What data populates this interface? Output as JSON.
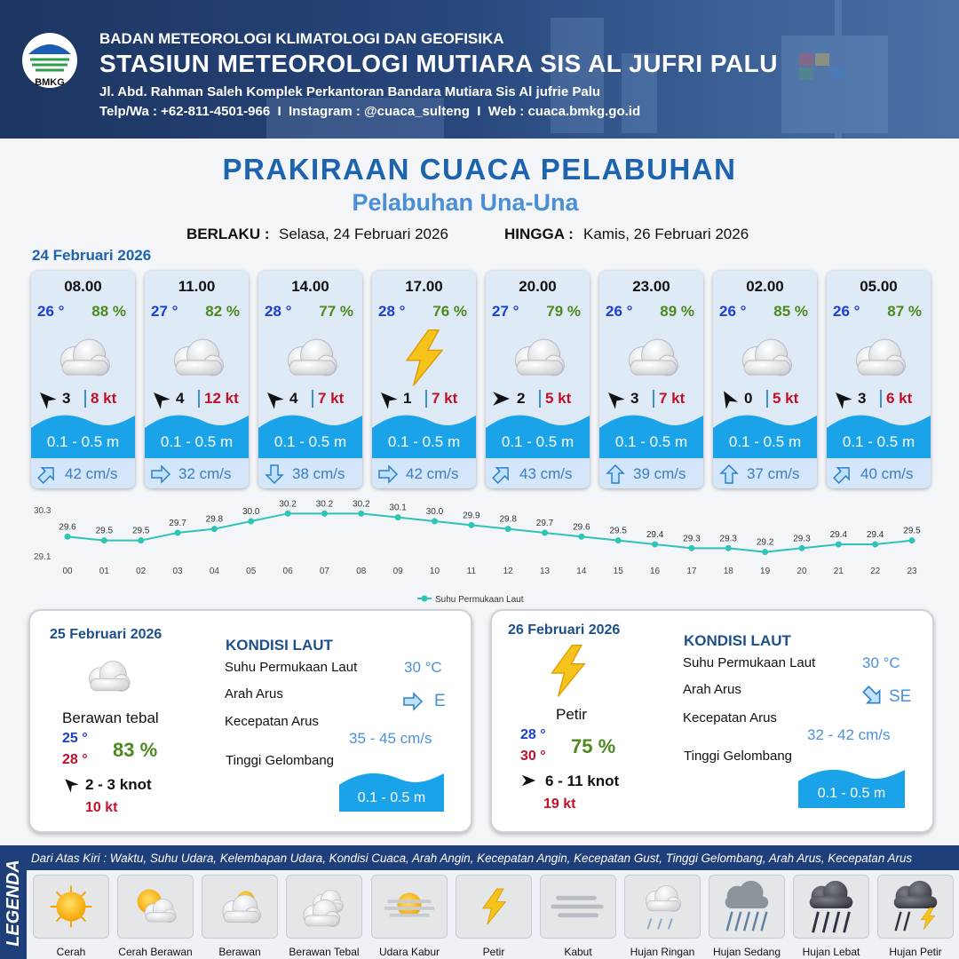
{
  "header": {
    "logo": "BMKG",
    "agency": "BADAN METEOROLOGI KLIMATOLOGI DAN GEOFISIKA",
    "station": "STASIUN METEOROLOGI MUTIARA SIS AL JUFRI PALU",
    "address": "Jl. Abd. Rahman Saleh Komplek Perkantoran Bandara Mutiara Sis Al jufrie Palu",
    "contact": "Telp/Wa : +62-811-4501-966  I  Instagram : @cuaca_sulteng  I  Web : cuaca.bmkg.go.id"
  },
  "title": "PRAKIRAAN CUACA PELABUHAN",
  "subtitle": "Pelabuhan Una-Una",
  "validity": {
    "from_label": "BERLAKU :",
    "from": "Selasa, 24 Februari 2026",
    "to_label": "HINGGA :",
    "to": "Kamis, 26 Februari 2026"
  },
  "first_day": "24 Februari 2026",
  "cards": [
    {
      "time": "08.00",
      "temperature": "26 °",
      "humidity": "88 %",
      "wind_speed": "3",
      "gust": "8 kt",
      "wave_height": "0.1 - 0.5 m",
      "current_speed": "42 cm/s"
    },
    {
      "time": "11.00",
      "temperature": "27 °",
      "humidity": "82 %",
      "wind_speed": "4",
      "gust": "12 kt",
      "wave_height": "0.1 - 0.5 m",
      "current_speed": "32 cm/s"
    },
    {
      "time": "14.00",
      "temperature": "28 °",
      "humidity": "77 %",
      "wind_speed": "4",
      "gust": "7 kt",
      "wave_height": "0.1 - 0.5 m",
      "current_speed": "38 cm/s"
    },
    {
      "time": "17.00",
      "temperature": "28 °",
      "humidity": "76 %",
      "wind_speed": "1",
      "gust": "7 kt",
      "wave_height": "0.1 - 0.5 m",
      "current_speed": "42 cm/s"
    },
    {
      "time": "20.00",
      "temperature": "27 °",
      "humidity": "79 %",
      "wind_speed": "2",
      "gust": "5 kt",
      "wave_height": "0.1 - 0.5 m",
      "current_speed": "43 cm/s"
    },
    {
      "time": "23.00",
      "temperature": "26 °",
      "humidity": "89 %",
      "wind_speed": "3",
      "gust": "7 kt",
      "wave_height": "0.1 - 0.5 m",
      "current_speed": "39 cm/s"
    },
    {
      "time": "02.00",
      "temperature": "26 °",
      "humidity": "85 %",
      "wind_speed": "0",
      "gust": "5 kt",
      "wave_height": "0.1 - 0.5 m",
      "current_speed": "37 cm/s"
    },
    {
      "time": "05.00",
      "temperature": "26 °",
      "humidity": "87 %",
      "wind_speed": "3",
      "gust": "6 kt",
      "wave_height": "0.1 - 0.5 m",
      "current_speed": "40 cm/s"
    }
  ],
  "chart_data": {
    "type": "line",
    "categories": [
      "00",
      "01",
      "02",
      "03",
      "04",
      "05",
      "06",
      "07",
      "08",
      "09",
      "10",
      "11",
      "12",
      "13",
      "14",
      "15",
      "16",
      "17",
      "18",
      "19",
      "20",
      "21",
      "22",
      "23"
    ],
    "series": [
      {
        "name": "Suhu Permukaan Laut",
        "color": "#2ec4b6",
        "values": [
          29.6,
          29.5,
          29.5,
          29.7,
          29.8,
          30.0,
          30.2,
          30.2,
          30.2,
          30.1,
          30.0,
          29.9,
          29.8,
          29.7,
          29.6,
          29.5,
          29.4,
          29.3,
          29.3,
          29.2,
          29.3,
          29.4,
          29.4,
          29.5
        ],
        "value_labels": [
          "29.6",
          "29.5",
          "29.5",
          "29.7",
          "29.8",
          "30.0",
          "30.2",
          "30.2",
          "30.2",
          "30.1",
          "30.0",
          "29.9",
          "29.8",
          "29.7",
          "29.6",
          "29.5",
          "29.4",
          "29.3",
          "29.3",
          "29.2",
          "29.3",
          "29.4",
          "29.4",
          "29.5"
        ]
      }
    ],
    "ylim": [
      29.1,
      30.3
    ],
    "yticks": [
      29.1,
      30.3
    ],
    "legend": "bottom"
  },
  "days": [
    {
      "date": "25 Februari 2026",
      "condition": "Berawan tebal",
      "temp_min": "25 °",
      "temp_max": "28 °",
      "humidity": "83 %",
      "wind": "2 - 3 knot",
      "gust": "10 kt",
      "sea_heading": "KONDISI LAUT",
      "sst_label": "Suhu Permukaan Laut",
      "sst": "30 °C",
      "current_dir_label": "Arah Arus",
      "current_dir": "E",
      "current_speed_label": "Kecepatan Arus",
      "current_speed": "35 - 45 cm/s",
      "wave_label": "Tinggi Gelombang",
      "wave": "0.1 - 0.5 m"
    },
    {
      "date": "26 Februari 2026",
      "condition": "Petir",
      "temp_min": "28 °",
      "temp_max": "30 °",
      "humidity": "75 %",
      "wind": "6 - 11 knot",
      "gust": "19 kt",
      "sea_heading": "KONDISI LAUT",
      "sst_label": "Suhu Permukaan Laut",
      "sst": "30 °C",
      "current_dir_label": "Arah Arus",
      "current_dir": "SE",
      "current_speed_label": "Kecepatan Arus",
      "current_speed": "32 - 42 cm/s",
      "wave_label": "Tinggi Gelombang",
      "wave": "0.1 - 0.5 m"
    }
  ],
  "legend": {
    "title": "LEGENDA",
    "description": "Dari Atas Kiri : Waktu, Suhu Udara, Kelembapan Udara, Kondisi Cuaca, Arah Angin, Kecepatan Angin, Kecepatan Gust, Tinggi Gelombang, Arah Arus, Kecepatan Arus",
    "items": [
      "Cerah",
      "Cerah Berawan",
      "Berawan",
      "Berawan Tebal",
      "Udara Kabur",
      "Petir",
      "Kabut",
      "Hujan Ringan",
      "Hujan Sedang",
      "Hujan Lebat",
      "Hujan Petir"
    ]
  }
}
